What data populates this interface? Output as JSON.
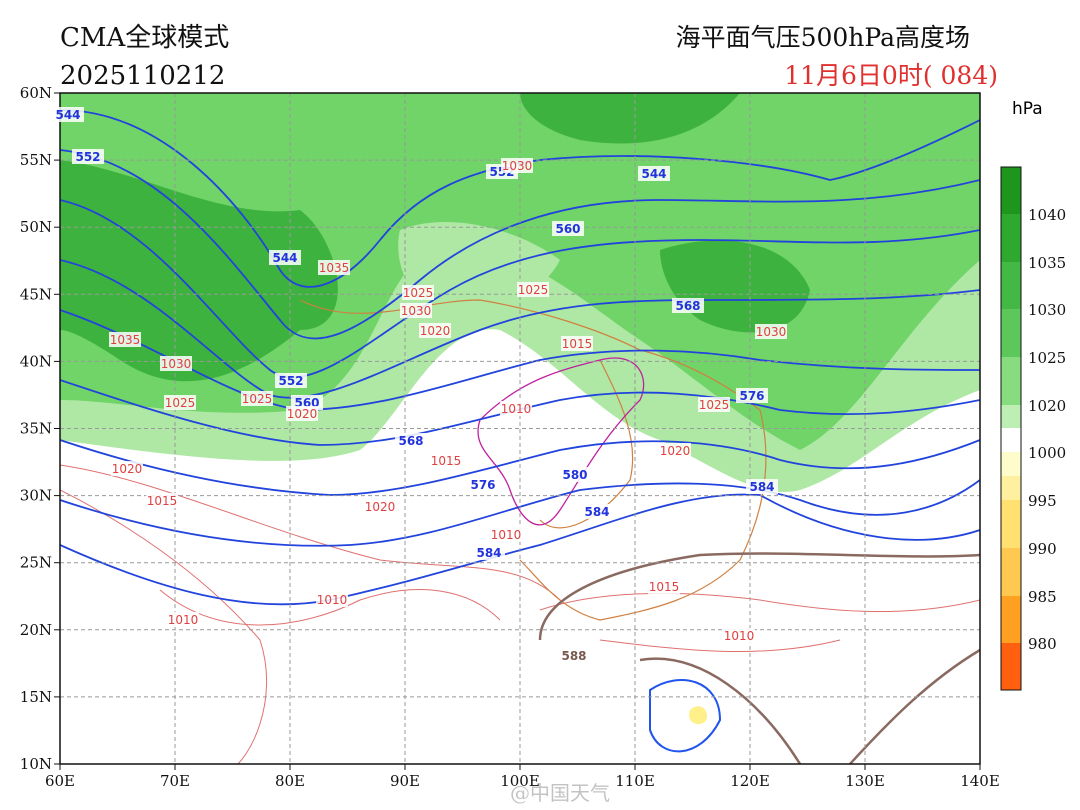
{
  "header": {
    "model": "CMA全球模式",
    "init": "2025110212",
    "title": "海平面气压500hPa高度场",
    "valid": "11月6日0时( 084)"
  },
  "axes": {
    "lat_labels": [
      "60N",
      "55N",
      "50N",
      "45N",
      "40N",
      "35N",
      "30N",
      "25N",
      "20N",
      "15N",
      "10N"
    ],
    "lon_labels": [
      "60E",
      "70E",
      "80E",
      "90E",
      "100E",
      "110E",
      "120E",
      "130E",
      "140E"
    ]
  },
  "colorbar": {
    "unit": "hPa",
    "labels": [
      "1040",
      "1035",
      "1030",
      "1025",
      "1020",
      "1000",
      "995",
      "990",
      "985",
      "980"
    ]
  },
  "contour_labels": {
    "height": [
      "544",
      "552",
      "552",
      "544",
      "544",
      "560",
      "568",
      "552",
      "560",
      "568",
      "576",
      "576",
      "580",
      "584",
      "584",
      "584",
      "588"
    ],
    "pressure": [
      "1030",
      "1035",
      "1025",
      "1030",
      "1020",
      "1025",
      "1015",
      "1035",
      "1030",
      "1025",
      "1025",
      "1020",
      "1010",
      "1015",
      "1020",
      "1015",
      "1020",
      "1010",
      "1030",
      "1025",
      "1020",
      "1015",
      "1010",
      "1010",
      "1010"
    ]
  },
  "watermark": "@中国天气"
}
